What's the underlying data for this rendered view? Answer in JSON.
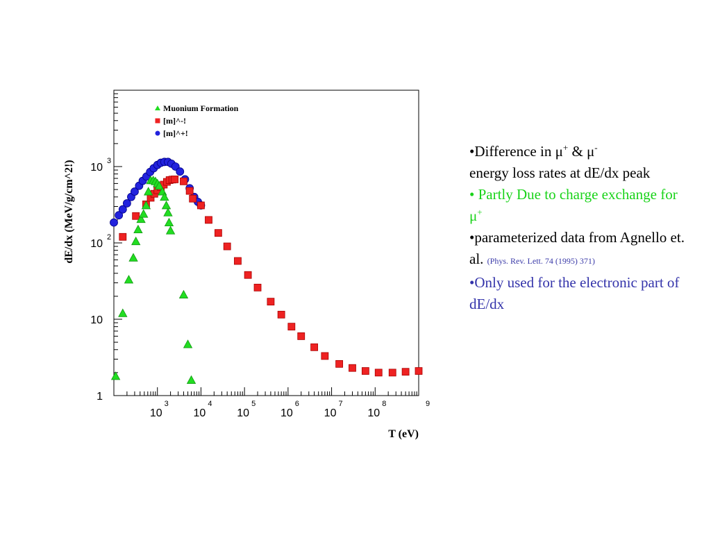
{
  "chart_data": {
    "type": "scatter",
    "xlabel": "T (eV)",
    "ylabel": "dE/dx (MeV/g/cm^2!)",
    "x_scale": "log",
    "y_scale": "log",
    "xlim": [
      100,
      1000000000
    ],
    "ylim": [
      1,
      10000
    ],
    "x_ticks": [
      {
        "base": "10",
        "exp": "3"
      },
      {
        "base": "10",
        "exp": "4"
      },
      {
        "base": "10",
        "exp": "5"
      },
      {
        "base": "10",
        "exp": "6"
      },
      {
        "base": "10",
        "exp": "7"
      },
      {
        "base": "10",
        "exp": "8"
      },
      {
        "base": "",
        "exp": "9"
      }
    ],
    "y_ticks": [
      {
        "base": "1",
        "exp": ""
      },
      {
        "base": "10",
        "exp": ""
      },
      {
        "base": "10",
        "exp": "2"
      },
      {
        "base": "10",
        "exp": "3"
      }
    ],
    "legend_position": "top-left",
    "series": [
      {
        "name": "Muonium Formation",
        "marker": "triangle",
        "color": "#22dd22",
        "points": [
          [
            110,
            1.8
          ],
          [
            160,
            12
          ],
          [
            220,
            33
          ],
          [
            280,
            64
          ],
          [
            320,
            105
          ],
          [
            360,
            150
          ],
          [
            420,
            205
          ],
          [
            480,
            240
          ],
          [
            550,
            310
          ],
          [
            620,
            470
          ],
          [
            700,
            660
          ],
          [
            800,
            660
          ],
          [
            900,
            640
          ],
          [
            1000,
            600
          ],
          [
            1100,
            560
          ],
          [
            1300,
            470
          ],
          [
            1450,
            400
          ],
          [
            1600,
            310
          ],
          [
            1750,
            250
          ],
          [
            1850,
            185
          ],
          [
            2000,
            145
          ],
          [
            4000,
            21
          ],
          [
            5000,
            4.7
          ],
          [
            6000,
            1.6
          ]
        ]
      },
      {
        "name": "[m]^-!",
        "marker": "square",
        "color": "#ee2222",
        "points": [
          [
            160,
            120
          ],
          [
            320,
            225
          ],
          [
            550,
            320
          ],
          [
            700,
            390
          ],
          [
            850,
            440
          ],
          [
            1000,
            490
          ],
          [
            1200,
            540
          ],
          [
            1400,
            580
          ],
          [
            1650,
            630
          ],
          [
            1900,
            665
          ],
          [
            2200,
            675
          ],
          [
            2500,
            680
          ],
          [
            4000,
            640
          ],
          [
            5500,
            480
          ],
          [
            6500,
            380
          ],
          [
            10000,
            310
          ],
          [
            15000,
            200
          ],
          [
            25000,
            135
          ],
          [
            40000,
            90
          ],
          [
            70000,
            58
          ],
          [
            120000,
            38
          ],
          [
            200000,
            26
          ],
          [
            400000,
            17
          ],
          [
            700000,
            11.5
          ],
          [
            1200000,
            8
          ],
          [
            2000000,
            6
          ],
          [
            4000000,
            4.3
          ],
          [
            7000000,
            3.3
          ],
          [
            15000000,
            2.6
          ],
          [
            30000000,
            2.3
          ],
          [
            60000000,
            2.1
          ],
          [
            120000000,
            2.0
          ],
          [
            250000000,
            2.0
          ],
          [
            500000000,
            2.05
          ],
          [
            1000000000,
            2.1
          ]
        ]
      },
      {
        "name": "[m]^+!",
        "marker": "circle",
        "color": "#2222dd",
        "points": [
          [
            100,
            185
          ],
          [
            130,
            230
          ],
          [
            160,
            275
          ],
          [
            200,
            330
          ],
          [
            250,
            400
          ],
          [
            300,
            470
          ],
          [
            380,
            560
          ],
          [
            460,
            650
          ],
          [
            560,
            740
          ],
          [
            680,
            850
          ],
          [
            820,
            950
          ],
          [
            1000,
            1050
          ],
          [
            1200,
            1120
          ],
          [
            1450,
            1150
          ],
          [
            1750,
            1150
          ],
          [
            2100,
            1090
          ],
          [
            2600,
            1000
          ],
          [
            3300,
            860
          ],
          [
            4300,
            680
          ],
          [
            5500,
            520
          ],
          [
            7000,
            400
          ],
          [
            8500,
            345
          ],
          [
            10000,
            310
          ]
        ]
      }
    ]
  },
  "notes": {
    "line1_prefix": "•Difference in ",
    "mu": "μ",
    "plus": "+",
    "amp": " & ",
    "minus": "-",
    "line1_rest": "energy loss rates at dE/dx peak",
    "line2": "• Partly Due to charge exchange for ",
    "line3": "•parameterized data from Agnello et. al. ",
    "citation": "(Phys. Rev. Lett. 74 (1995) 371)",
    "line4": "•Only used for the electronic part of dE/dx"
  }
}
